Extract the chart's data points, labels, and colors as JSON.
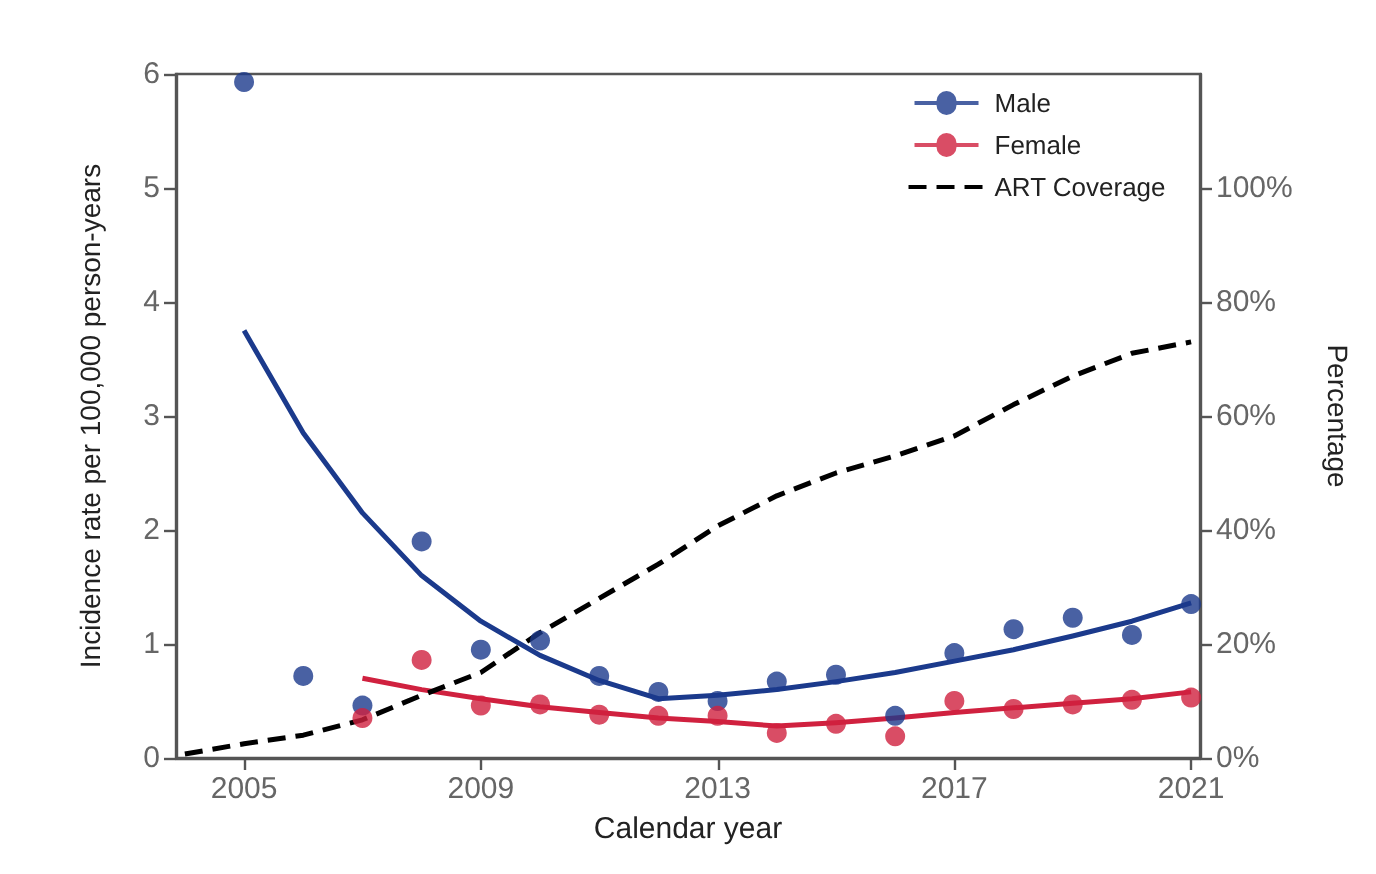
{
  "chart_data": {
    "type": "line",
    "xlabel": "Calendar year",
    "ylabel": "Incidence rate per 100,000 person-years",
    "y2label": "Percentage",
    "xlim": [
      2003.85,
      2021.15
    ],
    "xticks": [
      2005,
      2009,
      2013,
      2017,
      2021
    ],
    "ylim": [
      0,
      6
    ],
    "yticks": [
      0,
      1,
      2,
      3,
      4,
      5,
      6
    ],
    "y2lim": [
      0,
      120
    ],
    "y2ticks": [
      {
        "value": 0,
        "label": "0%"
      },
      {
        "value": 20,
        "label": "20%"
      },
      {
        "value": 40,
        "label": "40%"
      },
      {
        "value": 60,
        "label": "60%"
      },
      {
        "value": 80,
        "label": "80%"
      },
      {
        "value": 100,
        "label": "100%"
      }
    ],
    "grid": false,
    "legend": "top right",
    "marker": "circle",
    "series": [
      {
        "name": "Male",
        "type": "scatter",
        "color": "#1b3a8c",
        "x": [
          2005,
          2006,
          2007,
          2008,
          2009,
          2010,
          2011,
          2012,
          2013,
          2014,
          2015,
          2016,
          2017,
          2018,
          2019,
          2020,
          2021
        ],
        "values": [
          5.93,
          0.72,
          0.46,
          1.9,
          0.95,
          1.03,
          0.72,
          0.58,
          0.5,
          0.67,
          0.73,
          0.37,
          0.92,
          1.13,
          1.23,
          1.08,
          1.35
        ]
      },
      {
        "marker": "none",
        "color": "#1b3a8c",
        "x": [
          2005,
          2006,
          2007,
          2008,
          2009,
          2010,
          2011,
          2012,
          2013,
          2014,
          2015,
          2016,
          2017,
          2018,
          2019,
          2020,
          2021
        ],
        "values": [
          3.75,
          2.85,
          2.15,
          1.6,
          1.2,
          0.9,
          0.68,
          0.52,
          0.55,
          0.6,
          0.67,
          0.75,
          0.85,
          0.95,
          1.07,
          1.2,
          1.36
        ]
      },
      {
        "name": "Female",
        "type": "scatter",
        "color": "#d0213f",
        "x": [
          2007,
          2008,
          2009,
          2010,
          2011,
          2012,
          2013,
          2014,
          2015,
          2016,
          2017,
          2018,
          2019,
          2020,
          2021
        ],
        "values": [
          0.35,
          0.86,
          0.46,
          0.47,
          0.38,
          0.37,
          0.37,
          0.22,
          0.3,
          0.19,
          0.5,
          0.43,
          0.47,
          0.51,
          0.53
        ]
      },
      {
        "marker": "none",
        "color": "#d0213f",
        "x": [
          2007,
          2008,
          2009,
          2010,
          2011,
          2012,
          2013,
          2014,
          2015,
          2016,
          2017,
          2018,
          2019,
          2020,
          2021
        ],
        "values": [
          0.7,
          0.6,
          0.52,
          0.45,
          0.4,
          0.35,
          0.32,
          0.28,
          0.31,
          0.35,
          0.4,
          0.44,
          0.48,
          0.52,
          0.58
        ]
      },
      {
        "name": "ART Coverage",
        "axis": "y2",
        "marker": "none",
        "line_style": "dashed",
        "color": "#000000",
        "x": [
          2004,
          2005,
          2006,
          2007,
          2008,
          2009,
          2010,
          2011,
          2012,
          2013,
          2014,
          2015,
          2016,
          2017,
          2018,
          2019,
          2020,
          2021
        ],
        "values": [
          0.7,
          2.5,
          4,
          6.7,
          11,
          15,
          22,
          28,
          34,
          40.7,
          46,
          50,
          53,
          56.5,
          62,
          67,
          71,
          73
        ]
      }
    ]
  }
}
